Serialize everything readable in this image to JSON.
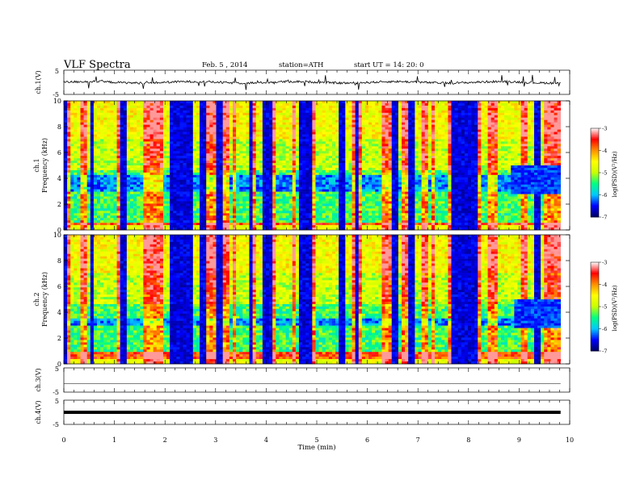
{
  "header": {
    "title": "VLF  Spectra",
    "date": "Feb. 5  , 2014",
    "station": "station=ATH",
    "start": "start  UT  =   14: 20: 0"
  },
  "chart_data": {
    "type": "heatmap",
    "xlabel": "Time  (min)",
    "xlim": [
      0,
      10
    ],
    "x_ticks": [
      "0",
      "1",
      "2",
      "3",
      "4",
      "5",
      "6",
      "7",
      "8",
      "9",
      "10"
    ],
    "data_end_min": 9.82,
    "waveform_panels": [
      {
        "id": "ch1",
        "ylabel": "ch.1(V)",
        "ylim": [
          -5,
          5
        ],
        "tick_top": "5",
        "tick_bottom": "-5"
      },
      {
        "id": "ch3",
        "ylabel": "ch.3(V)",
        "ylim": [
          -5,
          5
        ],
        "tick_top": "5",
        "tick_bottom": "-5"
      },
      {
        "id": "ch4",
        "ylabel": "ch.4(V)",
        "ylim": [
          -5,
          5
        ],
        "tick_top": "5",
        "tick_bottom": "-5"
      }
    ],
    "spectrogram_panels": [
      {
        "id": "spec1",
        "ylabel_ch": "ch.1",
        "ylabel": "Frequency  (kHz)",
        "ylim": [
          0,
          10
        ],
        "y_ticks": [
          "0",
          "2",
          "4",
          "6",
          "8",
          "10"
        ],
        "colorbar_label": "log(PSD)(V²/Hz)",
        "colorbar_range": [
          -7,
          -3
        ],
        "colorbar_ticks": [
          "-3",
          "-4",
          "-5",
          "-6",
          "-7"
        ],
        "dark_band_kHz": [
          3.0,
          4.3
        ],
        "red_band_kHz": [
          0.3,
          0.6
        ]
      },
      {
        "id": "spec2",
        "ylabel_ch": "ch.2",
        "ylabel": "Frequency  (kHz)",
        "ylim": [
          0,
          10
        ],
        "y_ticks": [
          "0",
          "2",
          "4",
          "6",
          "8",
          "10"
        ],
        "colorbar_label": "log(PSD)(V²/Hz)",
        "colorbar_range": [
          -7,
          -3
        ],
        "colorbar_ticks": [
          "-3",
          "-4",
          "-5",
          "-6",
          "-7"
        ],
        "dark_band_kHz": [
          3.0,
          3.6
        ],
        "red_band_kHz": [
          0.4,
          1.0
        ]
      }
    ],
    "colormap": [
      "#000060",
      "#0000ff",
      "#00c8ff",
      "#00ff80",
      "#c8ff00",
      "#ffff00",
      "#ff9000",
      "#ff0000",
      "#ffffff"
    ]
  }
}
